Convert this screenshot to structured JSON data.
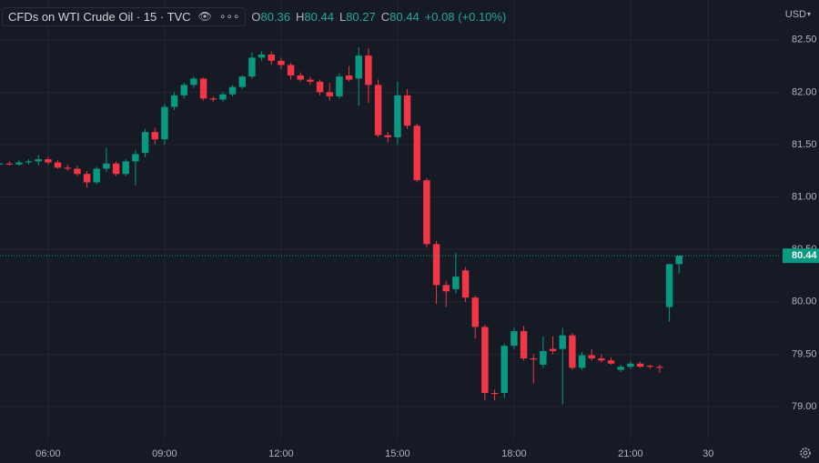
{
  "chart_data": {
    "type": "candlestick",
    "header": {
      "symbol": "CFDs on WTI Crude Oil · 15 · TVC",
      "ohlc": [
        {
          "label": "O",
          "value": 80.36
        },
        {
          "label": "H",
          "value": 80.44
        },
        {
          "label": "L",
          "value": 80.27
        },
        {
          "label": "C",
          "value": 80.44
        }
      ],
      "change": "+0.08 (+0.10%)"
    },
    "currency": "USD",
    "x": [
      4.75,
      5.0,
      5.25,
      5.5,
      5.75,
      6.0,
      6.25,
      6.5,
      6.75,
      7.0,
      7.25,
      7.5,
      7.75,
      8.0,
      8.25,
      8.5,
      8.75,
      9.0,
      9.25,
      9.5,
      9.75,
      10.0,
      10.25,
      10.5,
      10.75,
      11.0,
      11.25,
      11.5,
      11.75,
      12.0,
      12.25,
      12.5,
      12.75,
      13.0,
      13.25,
      13.5,
      13.75,
      14.0,
      14.25,
      14.5,
      14.75,
      15.0,
      15.25,
      15.5,
      15.75,
      16.0,
      16.25,
      16.5,
      16.75,
      17.0,
      17.25,
      17.5,
      17.75,
      18.0,
      18.25,
      18.5,
      18.75,
      19.0,
      19.25,
      19.5,
      19.75,
      20.0,
      20.25,
      20.5,
      20.75,
      21.0,
      21.25,
      21.5,
      21.75,
      22.0,
      22.25
    ],
    "open": [
      81.31,
      81.32,
      81.31,
      81.33,
      81.34,
      81.36,
      81.33,
      81.28,
      81.27,
      81.22,
      81.14,
      81.27,
      81.32,
      81.22,
      81.34,
      81.42,
      81.62,
      81.55,
      81.86,
      81.97,
      82.07,
      82.13,
      81.94,
      81.93,
      81.98,
      82.05,
      82.15,
      82.33,
      82.36,
      82.3,
      82.26,
      82.16,
      82.12,
      82.1,
      82.0,
      81.96,
      82.16,
      82.13,
      82.35,
      82.07,
      81.59,
      81.57,
      81.97,
      81.68,
      81.16,
      80.55,
      80.16,
      80.12,
      80.3,
      80.04,
      79.76,
      79.13,
      79.13,
      79.58,
      79.72,
      79.46,
      79.4,
      79.55,
      79.55,
      79.68,
      79.37,
      79.49,
      79.46,
      79.44,
      79.35,
      79.38,
      79.41,
      79.39,
      79.38,
      79.95,
      80.36
    ],
    "high": [
      81.33,
      81.34,
      81.35,
      81.36,
      81.4,
      81.38,
      81.35,
      81.31,
      81.3,
      81.25,
      81.29,
      81.47,
      81.34,
      81.36,
      81.45,
      81.65,
      81.66,
      81.89,
      82.0,
      82.09,
      82.15,
      82.14,
      81.96,
      82.0,
      82.07,
      82.16,
      82.38,
      82.39,
      82.39,
      82.33,
      82.28,
      82.19,
      82.15,
      82.12,
      82.09,
      82.18,
      82.25,
      82.43,
      82.42,
      82.12,
      81.62,
      82.1,
      82.03,
      81.7,
      81.18,
      80.58,
      80.2,
      80.47,
      80.33,
      80.06,
      79.78,
      79.16,
      79.6,
      79.75,
      79.77,
      79.5,
      79.67,
      79.67,
      79.75,
      79.7,
      79.52,
      79.55,
      79.5,
      79.47,
      79.4,
      79.43,
      79.43,
      79.4,
      79.4,
      80.36,
      80.44
    ],
    "low": [
      81.29,
      81.3,
      81.3,
      81.31,
      81.3,
      81.31,
      81.27,
      81.25,
      81.2,
      81.09,
      81.12,
      81.24,
      81.2,
      81.2,
      81.11,
      81.38,
      81.5,
      81.5,
      81.83,
      81.94,
      82.04,
      81.92,
      81.91,
      81.91,
      81.96,
      82.03,
      82.13,
      82.3,
      82.26,
      82.22,
      82.12,
      82.1,
      82.07,
      81.97,
      81.92,
      81.94,
      82.1,
      81.87,
      81.9,
      81.57,
      81.52,
      81.5,
      81.65,
      81.14,
      80.52,
      79.98,
      79.95,
      80.08,
      80.0,
      79.65,
      79.06,
      79.06,
      79.08,
      79.55,
      79.44,
      79.22,
      79.37,
      79.5,
      79.02,
      79.35,
      79.35,
      79.44,
      79.42,
      79.4,
      79.33,
      79.36,
      79.37,
      79.36,
      79.32,
      79.81,
      80.27
    ],
    "close": [
      81.32,
      81.31,
      81.33,
      81.34,
      81.36,
      81.33,
      81.28,
      81.27,
      81.22,
      81.14,
      81.27,
      81.32,
      81.22,
      81.34,
      81.41,
      81.62,
      81.55,
      81.86,
      81.97,
      82.07,
      82.13,
      81.94,
      81.93,
      81.98,
      82.05,
      82.15,
      82.33,
      82.36,
      82.3,
      82.26,
      82.16,
      82.12,
      82.1,
      82.0,
      81.96,
      82.15,
      82.12,
      82.35,
      82.07,
      81.59,
      81.57,
      81.97,
      81.68,
      81.16,
      80.55,
      80.16,
      80.1,
      80.24,
      80.04,
      79.76,
      79.13,
      79.12,
      79.58,
      79.72,
      79.46,
      79.45,
      79.53,
      79.53,
      79.68,
      79.37,
      79.49,
      79.46,
      79.44,
      79.41,
      79.38,
      79.41,
      79.38,
      79.38,
      79.37,
      80.36,
      80.44
    ],
    "up_color": "#089981",
    "down_color": "#f23645",
    "last_price": 80.44,
    "xlim": [
      4.76,
      24.87
    ],
    "xticks": [
      {
        "value": 6,
        "label": "06:00"
      },
      {
        "value": 9,
        "label": "09:00"
      },
      {
        "value": 12,
        "label": "12:00"
      },
      {
        "value": 15,
        "label": "15:00"
      },
      {
        "value": 18,
        "label": "18:00"
      },
      {
        "value": 21,
        "label": "21:00"
      },
      {
        "value": 23,
        "label": "30"
      }
    ],
    "ylim": [
      78.67,
      82.88
    ],
    "yticks": [
      {
        "value": 79,
        "label": "79.00"
      },
      {
        "value": 79.5,
        "label": "79.50"
      },
      {
        "value": 80,
        "label": "80.00"
      },
      {
        "value": 80.5,
        "label": "80.50"
      },
      {
        "value": 81,
        "label": "81.00"
      },
      {
        "value": 81.5,
        "label": "81.50"
      },
      {
        "value": 82,
        "label": "82.00"
      },
      {
        "value": 82.5,
        "label": "82.50"
      }
    ],
    "grid": true
  }
}
